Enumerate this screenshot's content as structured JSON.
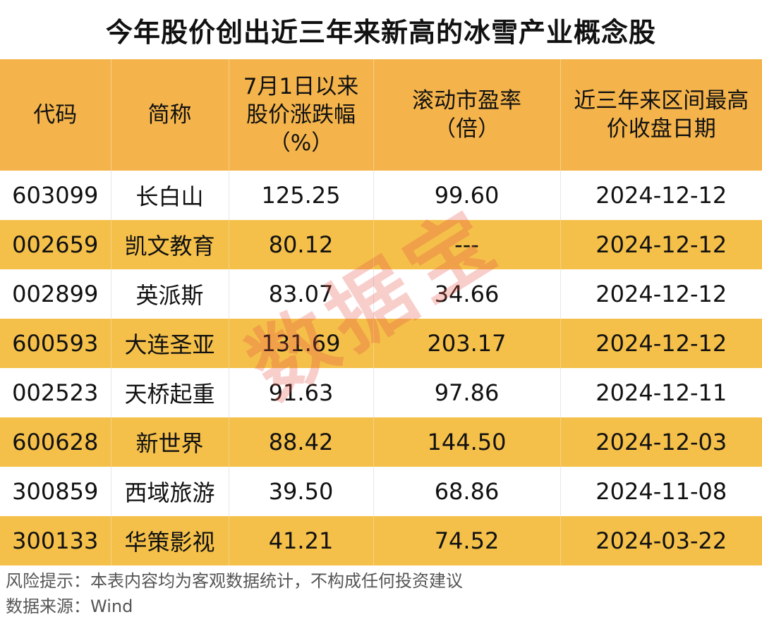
{
  "title": "今年股价创出近三年来新高的冰雪产业概念股",
  "chart_data": {
    "type": "table",
    "columns": [
      {
        "lines": [
          "代码"
        ]
      },
      {
        "lines": [
          "简称"
        ]
      },
      {
        "lines": [
          "7月1日以来",
          "股价涨跌幅",
          "（%）"
        ]
      },
      {
        "lines": [
          "滚动市盈率",
          "（倍）"
        ]
      },
      {
        "lines": [
          "近三年来区间最高",
          "价收盘日期"
        ]
      }
    ],
    "rows": [
      [
        "603099",
        "长白山",
        "125.25",
        "99.60",
        "2024-12-12"
      ],
      [
        "002659",
        "凯文教育",
        "80.12",
        "---",
        "2024-12-12"
      ],
      [
        "002899",
        "英派斯",
        "83.07",
        "34.66",
        "2024-12-12"
      ],
      [
        "600593",
        "大连圣亚",
        "131.69",
        "203.17",
        "2024-12-12"
      ],
      [
        "002523",
        "天桥起重",
        "91.63",
        "97.86",
        "2024-12-11"
      ],
      [
        "600628",
        "新世界",
        "88.42",
        "144.50",
        "2024-12-03"
      ],
      [
        "300859",
        "西域旅游",
        "39.50",
        "68.86",
        "2024-11-08"
      ],
      [
        "300133",
        "华策影视",
        "41.21",
        "74.52",
        "2024-03-22"
      ]
    ]
  },
  "footer": {
    "risk": "风险提示：本表内容均为客观数据统计，不构成任何投资建议",
    "source": "数据来源：Wind"
  },
  "watermark": "数据宝",
  "colors": {
    "header_bg": "#f4b44b",
    "stripe_bg": "#f4c04a",
    "watermark": "#e65046"
  }
}
